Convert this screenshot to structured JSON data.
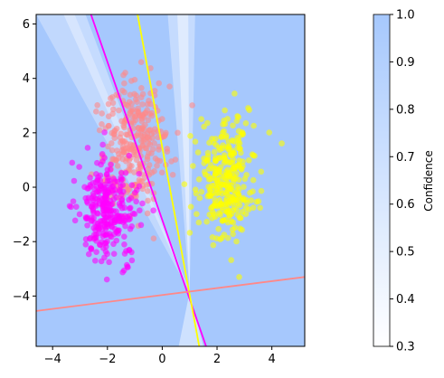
{
  "chart_data": {
    "type": "scatter",
    "title": "",
    "xlabel": "",
    "ylabel": "",
    "xlim": [
      -4.6,
      5.2
    ],
    "ylim": [
      -5.85,
      6.35
    ],
    "xticks": [
      -4,
      -2,
      0,
      2,
      4
    ],
    "yticks": [
      -4,
      -2,
      0,
      2,
      4,
      6
    ],
    "background_color": "#a6c8fd",
    "series": [
      {
        "color": "#ff8888",
        "center": [
          -1.0,
          1.6
        ],
        "spread": [
          0.6,
          1.3
        ],
        "count": 300
      },
      {
        "color": "#ff00ff",
        "center": [
          -2.0,
          -0.9
        ],
        "spread": [
          0.55,
          1.0
        ],
        "count": 300
      },
      {
        "color": "#ffff00",
        "center": [
          2.3,
          0.3
        ],
        "spread": [
          0.55,
          1.1
        ],
        "count": 300
      }
    ],
    "boundary_lines": [
      {
        "color": "#ff00ff",
        "p1": [
          -2.6,
          6.35
        ],
        "p2": [
          1.6,
          -5.85
        ]
      },
      {
        "color": "#ffff00",
        "p1": [
          -0.9,
          6.35
        ],
        "p2": [
          1.35,
          -5.85
        ]
      },
      {
        "color": "#ff8888",
        "p1": [
          -4.6,
          -4.55
        ],
        "p2": [
          5.2,
          -3.3
        ]
      }
    ],
    "colorbar": {
      "label": "Confidence",
      "min": 0.3,
      "max": 1.0,
      "ticks": [
        "0.3",
        "0.4",
        "0.5",
        "0.6",
        "0.7",
        "0.8",
        "0.9",
        "1.0"
      ],
      "color_low": "#ffffff",
      "color_high": "#a6c8fd"
    }
  }
}
